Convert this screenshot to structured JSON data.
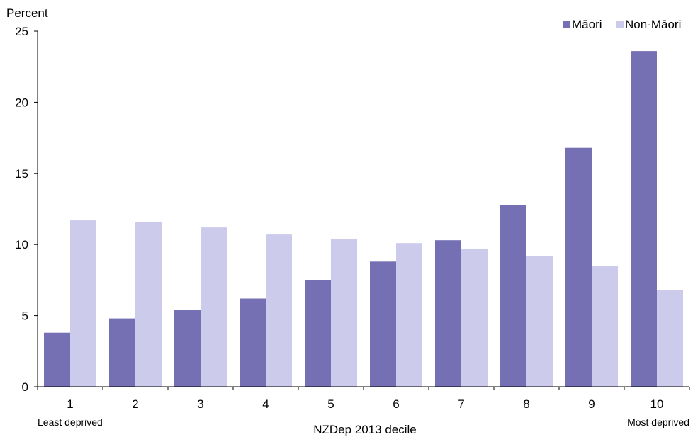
{
  "chart_data": {
    "type": "bar",
    "title": "",
    "ylabel": "Percent",
    "xlabel": "NZDep 2013 decile",
    "ylim": [
      0,
      25
    ],
    "y_ticks": [
      0,
      5,
      10,
      15,
      20,
      25
    ],
    "categories": [
      "1",
      "2",
      "3",
      "4",
      "5",
      "6",
      "7",
      "8",
      "9",
      "10"
    ],
    "series": [
      {
        "name": "Māori",
        "color": "#7470b3",
        "values": [
          3.8,
          4.8,
          5.4,
          6.2,
          7.5,
          8.8,
          10.3,
          12.8,
          16.8,
          23.6
        ]
      },
      {
        "name": "Non-Māori",
        "color": "#cccbec",
        "values": [
          11.7,
          11.6,
          11.2,
          10.7,
          10.4,
          10.1,
          9.7,
          9.2,
          8.5,
          6.8
        ]
      }
    ],
    "axis_notes": {
      "left": "Least deprived",
      "right": "Most deprived"
    },
    "legend_position": "top-right",
    "grid": false
  }
}
